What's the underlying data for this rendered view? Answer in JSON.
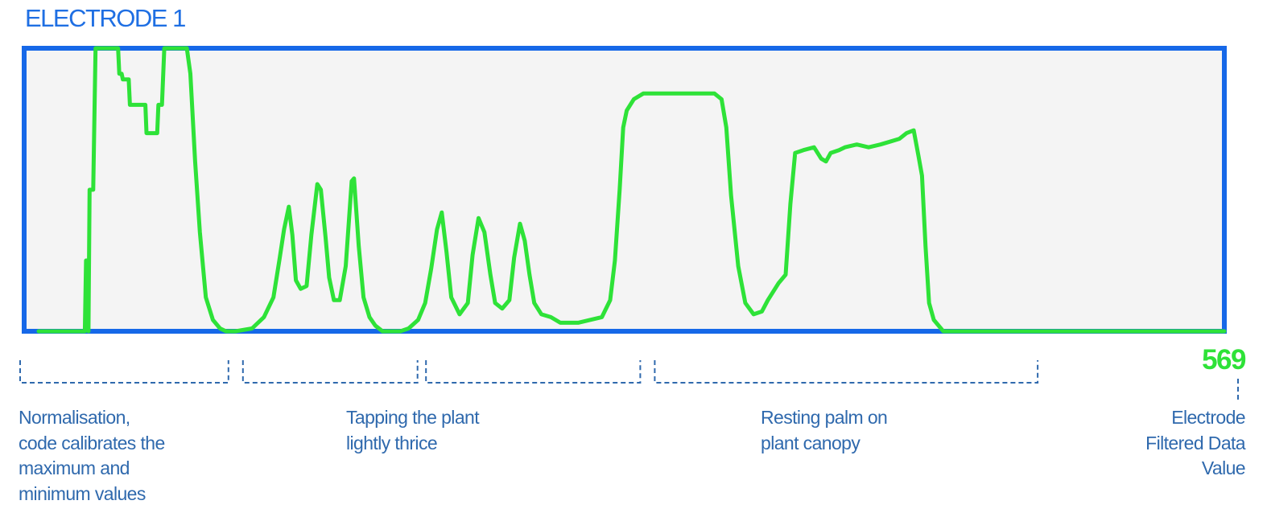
{
  "title": "ELECTRODE 1",
  "value_readout": "569",
  "annotations": [
    {
      "label": "Normalisation,\ncode calibrates the\nmaximum and\nminimum values"
    },
    {
      "label": "Tapping the plant\nlightly thrice"
    },
    {
      "label": ""
    },
    {
      "label": "Resting palm on\nplant canopy"
    }
  ],
  "value_label": "Electrode\nFiltered Data\nValue",
  "colors": {
    "title": "#1f6fe3",
    "frame": "#1668e8",
    "plot_background": "#f4f4f4",
    "series": "#2ee238",
    "annotation": "#2f69ad"
  },
  "chart_data": {
    "type": "line",
    "title": "ELECTRODE 1",
    "xlabel": "",
    "ylabel": "",
    "grid": false,
    "series": [
      {
        "name": "",
        "points": [
          [
            0.0,
            0.0
          ],
          [
            0.028,
            0.0
          ],
          [
            0.039,
            0.0
          ],
          [
            0.04,
            0.25
          ],
          [
            0.041,
            0.25
          ],
          [
            0.042,
            0.0
          ],
          [
            0.043,
            0.5
          ],
          [
            0.046,
            0.5
          ],
          [
            0.048,
            1.0
          ],
          [
            0.051,
            1.0
          ],
          [
            0.052,
            1.0
          ],
          [
            0.067,
            1.0
          ],
          [
            0.068,
            0.91
          ],
          [
            0.07,
            0.91
          ],
          [
            0.071,
            0.89
          ],
          [
            0.076,
            0.89
          ],
          [
            0.077,
            0.8
          ],
          [
            0.09,
            0.8
          ],
          [
            0.091,
            0.7
          ],
          [
            0.1,
            0.7
          ],
          [
            0.101,
            0.8
          ],
          [
            0.104,
            0.8
          ],
          [
            0.106,
            1.0
          ],
          [
            0.125,
            1.0
          ],
          [
            0.128,
            0.91
          ],
          [
            0.132,
            0.6
          ],
          [
            0.136,
            0.35
          ],
          [
            0.141,
            0.12
          ],
          [
            0.147,
            0.04
          ],
          [
            0.153,
            0.01
          ],
          [
            0.158,
            0.0
          ],
          [
            0.166,
            0.0
          ],
          [
            0.18,
            0.01
          ],
          [
            0.19,
            0.05
          ],
          [
            0.198,
            0.12
          ],
          [
            0.203,
            0.25
          ],
          [
            0.207,
            0.36
          ],
          [
            0.211,
            0.44
          ],
          [
            0.214,
            0.34
          ],
          [
            0.217,
            0.18
          ],
          [
            0.221,
            0.15
          ],
          [
            0.226,
            0.16
          ],
          [
            0.23,
            0.34
          ],
          [
            0.235,
            0.52
          ],
          [
            0.238,
            0.5
          ],
          [
            0.242,
            0.33
          ],
          [
            0.245,
            0.19
          ],
          [
            0.249,
            0.11
          ],
          [
            0.254,
            0.11
          ],
          [
            0.259,
            0.23
          ],
          [
            0.264,
            0.53
          ],
          [
            0.266,
            0.54
          ],
          [
            0.27,
            0.3
          ],
          [
            0.274,
            0.12
          ],
          [
            0.279,
            0.05
          ],
          [
            0.284,
            0.02
          ],
          [
            0.29,
            0.0
          ],
          [
            0.305,
            0.0
          ],
          [
            0.312,
            0.01
          ],
          [
            0.32,
            0.04
          ],
          [
            0.326,
            0.1
          ],
          [
            0.331,
            0.22
          ],
          [
            0.336,
            0.36
          ],
          [
            0.34,
            0.42
          ],
          [
            0.344,
            0.28
          ],
          [
            0.348,
            0.12
          ],
          [
            0.355,
            0.06
          ],
          [
            0.362,
            0.1
          ],
          [
            0.366,
            0.27
          ],
          [
            0.371,
            0.4
          ],
          [
            0.376,
            0.35
          ],
          [
            0.381,
            0.2
          ],
          [
            0.385,
            0.1
          ],
          [
            0.391,
            0.08
          ],
          [
            0.397,
            0.11
          ],
          [
            0.401,
            0.26
          ],
          [
            0.406,
            0.38
          ],
          [
            0.41,
            0.32
          ],
          [
            0.414,
            0.2
          ],
          [
            0.418,
            0.1
          ],
          [
            0.424,
            0.06
          ],
          [
            0.432,
            0.05
          ],
          [
            0.44,
            0.03
          ],
          [
            0.455,
            0.03
          ],
          [
            0.465,
            0.04
          ],
          [
            0.475,
            0.05
          ],
          [
            0.482,
            0.11
          ],
          [
            0.486,
            0.25
          ],
          [
            0.49,
            0.5
          ],
          [
            0.493,
            0.72
          ],
          [
            0.496,
            0.78
          ],
          [
            0.502,
            0.82
          ],
          [
            0.51,
            0.84
          ],
          [
            0.525,
            0.84
          ],
          [
            0.545,
            0.84
          ],
          [
            0.56,
            0.84
          ],
          [
            0.57,
            0.84
          ],
          [
            0.576,
            0.82
          ],
          [
            0.58,
            0.72
          ],
          [
            0.584,
            0.48
          ],
          [
            0.59,
            0.23
          ],
          [
            0.596,
            0.1
          ],
          [
            0.603,
            0.06
          ],
          [
            0.61,
            0.07
          ],
          [
            0.615,
            0.11
          ],
          [
            0.624,
            0.17
          ],
          [
            0.63,
            0.2
          ],
          [
            0.634,
            0.45
          ],
          [
            0.638,
            0.63
          ],
          [
            0.645,
            0.64
          ],
          [
            0.654,
            0.65
          ],
          [
            0.66,
            0.61
          ],
          [
            0.664,
            0.6
          ],
          [
            0.668,
            0.63
          ],
          [
            0.675,
            0.64
          ],
          [
            0.68,
            0.65
          ],
          [
            0.69,
            0.66
          ],
          [
            0.7,
            0.65
          ],
          [
            0.71,
            0.66
          ],
          [
            0.718,
            0.67
          ],
          [
            0.726,
            0.68
          ],
          [
            0.732,
            0.7
          ],
          [
            0.738,
            0.71
          ],
          [
            0.742,
            0.62
          ],
          [
            0.745,
            0.55
          ],
          [
            0.748,
            0.3
          ],
          [
            0.751,
            0.1
          ],
          [
            0.755,
            0.04
          ],
          [
            0.763,
            0.0
          ],
          [
            0.775,
            0.0
          ],
          [
            0.8,
            0.0
          ],
          [
            0.84,
            0.0
          ],
          [
            0.88,
            0.0
          ],
          [
            0.92,
            0.0
          ],
          [
            0.96,
            0.0
          ],
          [
            1.0,
            0.0
          ]
        ]
      }
    ],
    "segments": [
      {
        "label": "Normalisation, code calibrates the maximum and minimum values",
        "x_range": [
          0.0,
          0.173
        ]
      },
      {
        "label": "Tapping the plant lightly thrice",
        "x_range": [
          0.185,
          0.33
        ]
      },
      {
        "label": "",
        "x_range": [
          0.337,
          0.515
        ]
      },
      {
        "label": "Resting palm on plant canopy",
        "x_range": [
          0.527,
          0.845
        ]
      }
    ],
    "value_readout": "569",
    "value_label": "Electrode Filtered Data Value"
  }
}
